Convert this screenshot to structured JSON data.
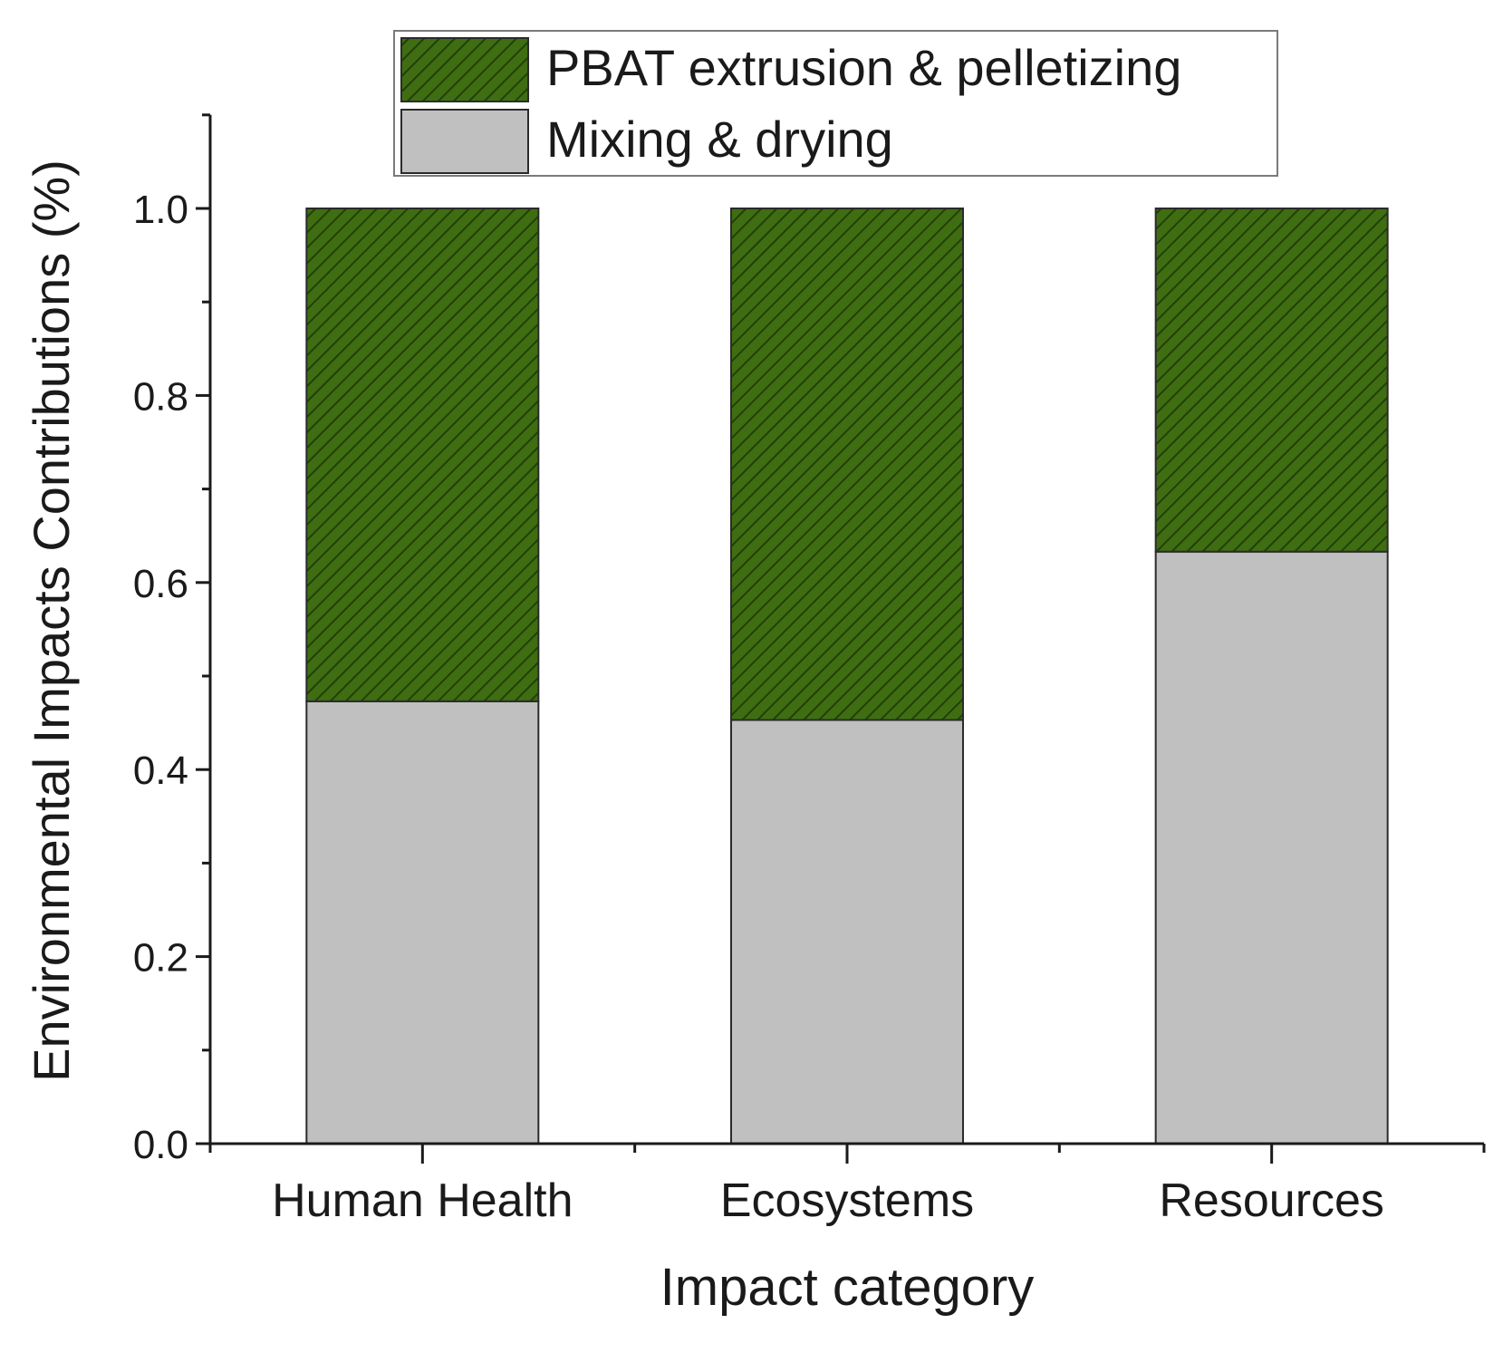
{
  "chart_data": {
    "type": "bar",
    "stacked": true,
    "categories": [
      "Human Health",
      "Ecosystems",
      "Resources"
    ],
    "series": [
      {
        "name": "Mixing & drying",
        "values": [
          0.473,
          0.453,
          0.633
        ],
        "color": "#c0c0c0",
        "pattern": "none"
      },
      {
        "name": "PBAT extrusion & pelletizing",
        "values": [
          0.527,
          0.547,
          0.367
        ],
        "color": "#3f6e12",
        "pattern": "hatched"
      }
    ],
    "xlabel": "Impact category",
    "ylabel": "Environmental Impacts Contributions (%)",
    "ylim": [
      0,
      1.1
    ],
    "yticks": [
      0.0,
      0.2,
      0.4,
      0.6,
      0.8,
      1.0
    ],
    "ytick_labels": [
      "0.0",
      "0.2",
      "0.4",
      "0.6",
      "0.8",
      "1.0"
    ],
    "legend_position": "top-center",
    "legend_order": [
      "PBAT extrusion & pelletizing",
      "Mixing & drying"
    ],
    "grid": false
  }
}
